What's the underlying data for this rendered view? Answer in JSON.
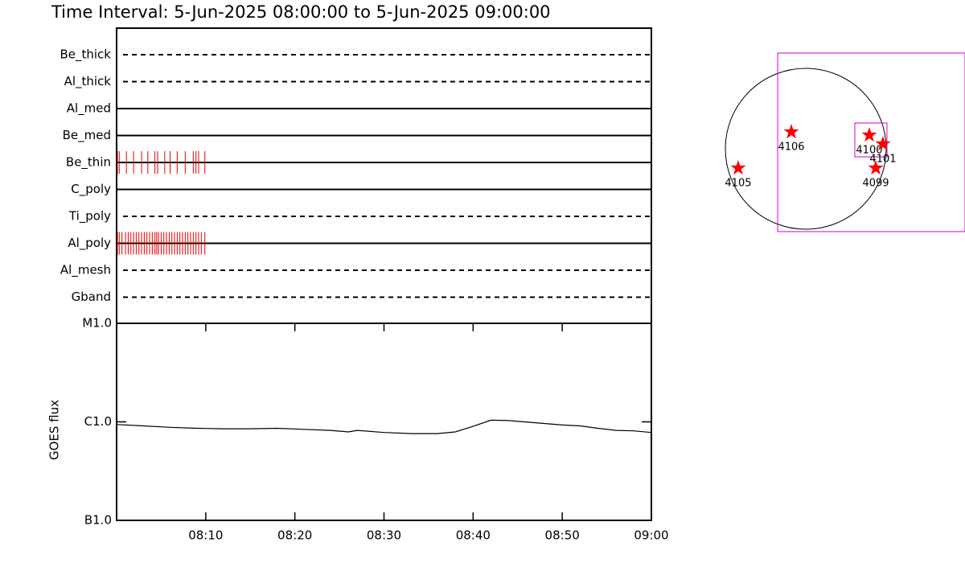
{
  "title": "Time Interval:  5-Jun-2025 08:00:00 to  5-Jun-2025 09:00:00",
  "chart_data": [
    {
      "type": "timeline",
      "categories": [
        "Be_thick",
        "Al_thick",
        "Al_med",
        "Be_med",
        "Be_thin",
        "C_poly",
        "Ti_poly",
        "Al_poly",
        "Al_mesh",
        "Gband"
      ],
      "line_styles": [
        "dashed",
        "dashed",
        "solid",
        "solid",
        "solid",
        "solid",
        "dashed",
        "solid",
        "dashed",
        "dashed"
      ],
      "color": "#e00000",
      "xlim": [
        0,
        60
      ],
      "series": [
        {
          "category": "Be_thin",
          "x": [
            0.1,
            0.3,
            1.1,
            1.9,
            2.8,
            3.5,
            4.3,
            4.6,
            5.4,
            6.0,
            6.8,
            7.7,
            8.6,
            8.9,
            9.2,
            9.9
          ]
        },
        {
          "category": "Al_poly",
          "x": [
            0.1,
            0.3,
            0.6,
            1.0,
            1.3,
            1.6,
            1.9,
            2.2,
            2.5,
            2.8,
            3.1,
            3.4,
            3.7,
            4.0,
            4.3,
            4.5,
            4.7,
            5.0,
            5.3,
            5.6,
            5.9,
            6.2,
            6.5,
            6.8,
            7.1,
            7.4,
            7.7,
            8.0,
            8.3,
            8.6,
            8.9,
            9.2,
            9.5,
            9.9
          ]
        }
      ]
    },
    {
      "type": "line",
      "ylabel": "GOES flux",
      "log_y": true,
      "color": "#000000",
      "xlim": [
        0,
        60
      ],
      "xticks": [
        {
          "value": 10,
          "label": "08:10"
        },
        {
          "value": 20,
          "label": "08:20"
        },
        {
          "value": 30,
          "label": "08:30"
        },
        {
          "value": 40,
          "label": "08:40"
        },
        {
          "value": 50,
          "label": "08:50"
        },
        {
          "value": 60,
          "label": "09:00"
        }
      ],
      "ylim": [
        1e-07,
        1e-05
      ],
      "yticks": [
        {
          "value": 1e-07,
          "label": "B1.0"
        },
        {
          "value": 1e-06,
          "label": "C1.0"
        },
        {
          "value": 1e-05,
          "label": "M1.0"
        }
      ],
      "x": [
        0,
        3,
        6,
        9,
        12,
        15,
        18,
        21,
        24,
        26,
        27,
        30,
        33,
        36,
        38,
        40,
        42,
        44,
        47,
        50,
        52,
        54,
        56,
        58,
        60
      ],
      "values": [
        9.4e-07,
        9.1e-07,
        8.8e-07,
        8.6e-07,
        8.5e-07,
        8.5e-07,
        8.6e-07,
        8.4e-07,
        8.2e-07,
        7.9e-07,
        8.2e-07,
        7.8e-07,
        7.6e-07,
        7.6e-07,
        7.9e-07,
        9e-07,
        1.04e-06,
        1.03e-06,
        9.8e-07,
        9.3e-07,
        9.1e-07,
        8.6e-07,
        8.2e-07,
        8.1e-07,
        7.8e-07
      ]
    },
    {
      "type": "scatter",
      "color": "#ff0000",
      "solar_radius": 946,
      "fov_color": "#d000d0",
      "fov": [
        [
          -331,
          1873,
          -974,
          1126
        ],
        [
          577,
          955,
          -95,
          303
        ]
      ],
      "names": [
        "4106",
        "4105",
        "4100",
        "4101",
        "4099"
      ],
      "x": [
        -170,
        -795,
        747,
        908,
        823
      ],
      "y": [
        199,
        -227,
        161,
        57,
        -227
      ]
    }
  ]
}
